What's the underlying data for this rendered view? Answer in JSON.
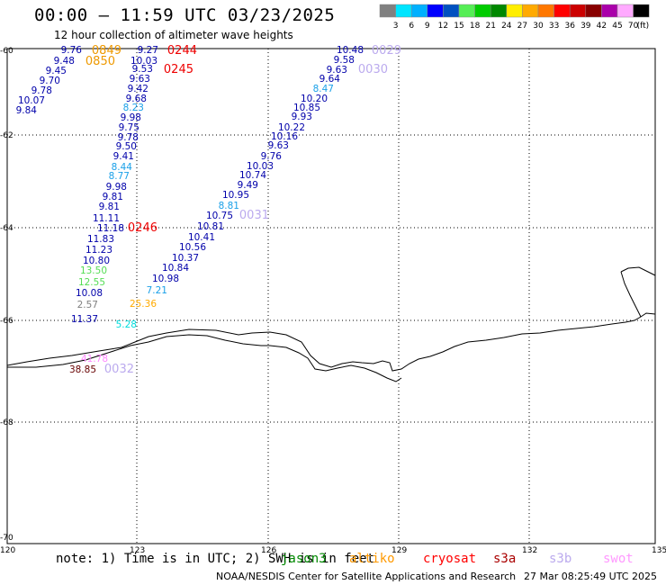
{
  "title": "00:00 – 11:59 UTC 03/23/2025",
  "subtitle": "12 hour collection of altimeter wave heights",
  "colorbar": {
    "unit": "(ft)",
    "ticks": [
      "3",
      "6",
      "9",
      "12",
      "15",
      "18",
      "21",
      "24",
      "27",
      "30",
      "33",
      "36",
      "39",
      "42",
      "45",
      "70"
    ],
    "colors": [
      "#808080",
      "#00e5ff",
      "#00b0ff",
      "#0000ff",
      "#0050c0",
      "#55ee55",
      "#00cc00",
      "#008800",
      "#ffee00",
      "#ffaa00",
      "#ff7700",
      "#ff0000",
      "#cc0000",
      "#880000",
      "#aa00aa",
      "#ffaaff",
      "#000000"
    ]
  },
  "axes": {
    "lat_labels": [
      "-60",
      "-62",
      "-64",
      "-66",
      "-68",
      "-70"
    ],
    "lon_labels": [
      "120",
      "123",
      "126",
      "129",
      "132",
      "135"
    ]
  },
  "observations": {
    "track_a": [
      {
        "t": "9.76",
        "c": "#0000aa"
      },
      {
        "t": "9.48",
        "c": "#0000aa"
      },
      {
        "t": "9.45",
        "c": "#0000aa"
      },
      {
        "t": "9.70",
        "c": "#0000aa"
      },
      {
        "t": "9.78",
        "c": "#0000aa"
      },
      {
        "t": "10.07",
        "c": "#0000aa"
      },
      {
        "t": "9.84",
        "c": "#0000aa"
      }
    ],
    "track_b": [
      {
        "t": "9.27",
        "c": "#0000aa"
      },
      {
        "t": "10.03",
        "c": "#0000aa"
      },
      {
        "t": "9.53",
        "c": "#0000aa"
      },
      {
        "t": "9.63",
        "c": "#0000aa"
      },
      {
        "t": "9.42",
        "c": "#0000aa"
      },
      {
        "t": "9.68",
        "c": "#0000aa"
      },
      {
        "t": "8.23",
        "c": "#1aa0e8"
      },
      {
        "t": "9.98",
        "c": "#0000aa"
      },
      {
        "t": "9.75",
        "c": "#0000aa"
      },
      {
        "t": "9.78",
        "c": "#0000aa"
      },
      {
        "t": "9.50",
        "c": "#0000aa"
      },
      {
        "t": "9.41",
        "c": "#0000aa"
      },
      {
        "t": "8.44",
        "c": "#1aa0e8"
      },
      {
        "t": "8.77",
        "c": "#1aa0e8"
      },
      {
        "t": "9.98",
        "c": "#0000aa"
      },
      {
        "t": "9.81",
        "c": "#0000aa"
      },
      {
        "t": "9.81",
        "c": "#0000aa"
      },
      {
        "t": "11.11",
        "c": "#0000aa"
      },
      {
        "t": "11.18",
        "c": "#0000aa"
      },
      {
        "t": "11.83",
        "c": "#0000aa"
      },
      {
        "t": "11.23",
        "c": "#0000aa"
      },
      {
        "t": "10.80",
        "c": "#0000aa"
      },
      {
        "t": "13.50",
        "c": "#55dd55"
      },
      {
        "t": "12.55",
        "c": "#55dd55"
      },
      {
        "t": "10.08",
        "c": "#0000aa"
      },
      {
        "t": "2.57",
        "c": "#808080"
      },
      {
        "t": "11.37",
        "c": "#0000aa"
      }
    ],
    "track_c": [
      {
        "t": "10.48",
        "c": "#0000aa"
      },
      {
        "t": "9.58",
        "c": "#0000aa"
      },
      {
        "t": "9.63",
        "c": "#0000aa"
      },
      {
        "t": "9.64",
        "c": "#0000aa"
      },
      {
        "t": "8.47",
        "c": "#1aa0e8"
      },
      {
        "t": "10.20",
        "c": "#0000aa"
      },
      {
        "t": "10.85",
        "c": "#0000aa"
      },
      {
        "t": "9.93",
        "c": "#0000aa"
      },
      {
        "t": "10.22",
        "c": "#0000aa"
      },
      {
        "t": "10.16",
        "c": "#0000aa"
      },
      {
        "t": "9.63",
        "c": "#0000aa"
      },
      {
        "t": "9.76",
        "c": "#0000aa"
      },
      {
        "t": "10.03",
        "c": "#0000aa"
      },
      {
        "t": "10.74",
        "c": "#0000aa"
      },
      {
        "t": "9.49",
        "c": "#0000aa"
      },
      {
        "t": "10.95",
        "c": "#0000aa"
      },
      {
        "t": "8.81",
        "c": "#1aa0e8"
      },
      {
        "t": "10.75",
        "c": "#0000aa"
      },
      {
        "t": "10.81",
        "c": "#0000aa"
      },
      {
        "t": "10.41",
        "c": "#0000aa"
      },
      {
        "t": "10.56",
        "c": "#0000aa"
      },
      {
        "t": "10.37",
        "c": "#0000aa"
      },
      {
        "t": "10.84",
        "c": "#0000aa"
      },
      {
        "t": "10.98",
        "c": "#0000aa"
      },
      {
        "t": "7.21",
        "c": "#1aa0e8"
      }
    ],
    "isolated": [
      {
        "t": "25.36",
        "c": "#ffaa00"
      },
      {
        "t": "5.28",
        "c": "#00dddd"
      },
      {
        "t": "41.78",
        "c": "#ff88ff"
      },
      {
        "t": "38.85",
        "c": "#660000"
      }
    ],
    "times": [
      {
        "t": "0849",
        "c": "#ee9900"
      },
      {
        "t": "0850",
        "c": "#ee9900"
      },
      {
        "t": "0244",
        "c": "#ee0000"
      },
      {
        "t": "0245",
        "c": "#ee0000"
      },
      {
        "t": "0246",
        "c": "#ee0000"
      },
      {
        "t": "0029",
        "c": "#bbaaee"
      },
      {
        "t": "0030",
        "c": "#bbaaee"
      },
      {
        "t": "0031",
        "c": "#bbaaee"
      },
      {
        "t": "0032",
        "c": "#bbaaee"
      }
    ]
  },
  "footer": {
    "note": "note: 1) Time is in UTC; 2) SWH is in feet",
    "satellites": [
      {
        "name": "jason3",
        "color": "#008800"
      },
      {
        "name": "altiko",
        "color": "#ff9900"
      },
      {
        "name": "cryosat",
        "color": "#ff0000"
      },
      {
        "name": "s3a",
        "color": "#aa0000"
      },
      {
        "name": "s3b",
        "color": "#bbaaee"
      },
      {
        "name": "swot",
        "color": "#ff99ff"
      }
    ],
    "credit": "NOAA/NESDIS Center for Satellite Applications and Research",
    "date": "27 Mar 08:25:49 UTC 2025"
  }
}
